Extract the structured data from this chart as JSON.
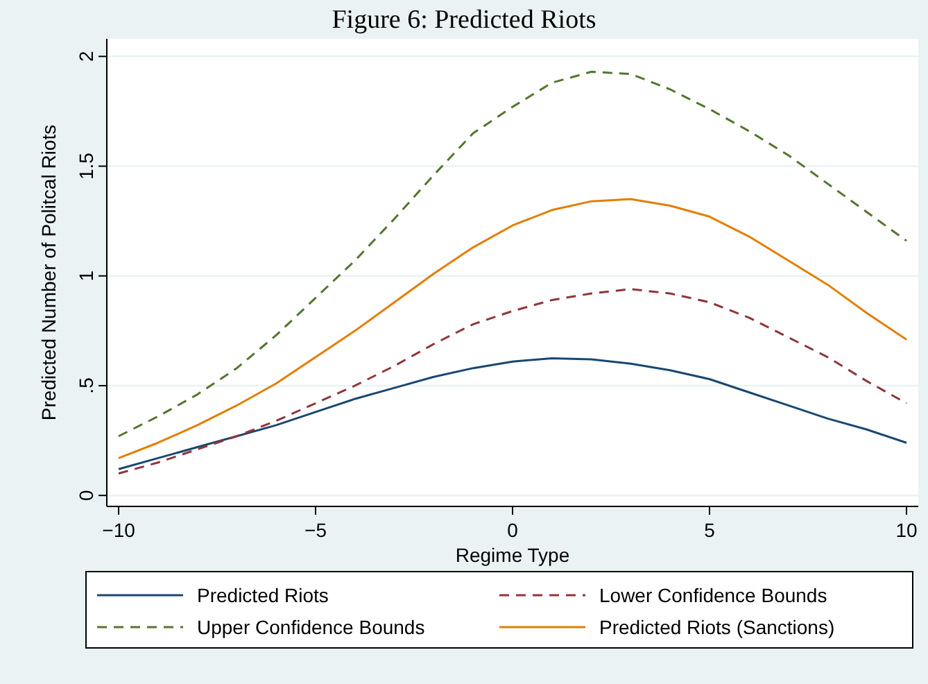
{
  "chart_data": {
    "type": "line",
    "title": "Figure 6: Predicted Riots",
    "xlabel": "Regime Type",
    "ylabel": "Predicted Number of Politcal Riots",
    "x": [
      -10,
      -9,
      -8,
      -7,
      -6,
      -5,
      -4,
      -3,
      -2,
      -1,
      0,
      1,
      2,
      3,
      4,
      5,
      6,
      7,
      8,
      9,
      10
    ],
    "xlim": [
      -10.3,
      10.3
    ],
    "xticks": [
      {
        "value": -10,
        "label": "−10"
      },
      {
        "value": -5,
        "label": "−5"
      },
      0,
      5,
      10
    ],
    "ylim": [
      -0.05,
      2.08
    ],
    "yticks": [
      0,
      {
        "value": 0.5,
        "label": ".5"
      },
      1,
      1.5,
      2
    ],
    "grid": "y",
    "legend": "bottom",
    "series": [
      {
        "name": "Predicted Riots",
        "color": "#1a476f",
        "line_style": "solid",
        "values": [
          0.12,
          0.17,
          0.22,
          0.27,
          0.32,
          0.38,
          0.44,
          0.49,
          0.54,
          0.58,
          0.61,
          0.625,
          0.62,
          0.6,
          0.57,
          0.53,
          0.47,
          0.41,
          0.35,
          0.3,
          0.24
        ]
      },
      {
        "name": "Lower Confidence Bounds",
        "color": "#90353b",
        "line_style": "dashed",
        "values": [
          0.1,
          0.15,
          0.21,
          0.27,
          0.34,
          0.42,
          0.5,
          0.59,
          0.69,
          0.78,
          0.84,
          0.89,
          0.92,
          0.94,
          0.92,
          0.88,
          0.81,
          0.72,
          0.63,
          0.52,
          0.42
        ]
      },
      {
        "name": "Upper Confidence Bounds",
        "color": "#55752f",
        "line_style": "dashed",
        "values": [
          0.27,
          0.36,
          0.46,
          0.58,
          0.73,
          0.9,
          1.07,
          1.26,
          1.46,
          1.65,
          1.77,
          1.88,
          1.93,
          1.92,
          1.85,
          1.76,
          1.66,
          1.55,
          1.42,
          1.29,
          1.16
        ]
      },
      {
        "name": "Predicted Riots (Sanctions)",
        "color": "#e37e00",
        "line_style": "solid",
        "values": [
          0.17,
          0.24,
          0.32,
          0.41,
          0.51,
          0.63,
          0.75,
          0.88,
          1.01,
          1.13,
          1.23,
          1.3,
          1.34,
          1.35,
          1.32,
          1.27,
          1.18,
          1.07,
          0.96,
          0.83,
          0.71
        ]
      }
    ]
  }
}
